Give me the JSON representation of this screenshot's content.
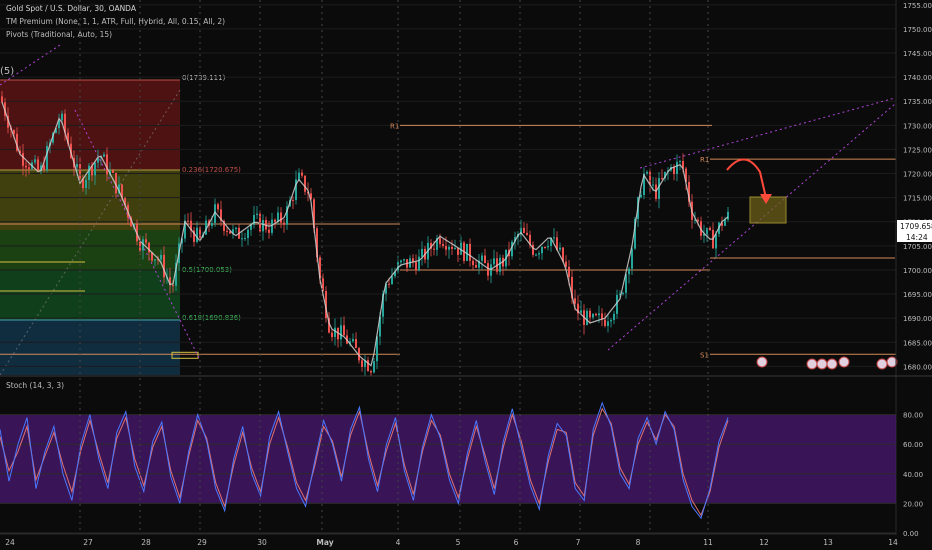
{
  "header": {
    "symbol_line": "Gold Spot / U.S. Dollar, 30, OANDA",
    "indicator_1": "TM Premium (None, 1, 1, ATR, Full, Hybrid, All, 0.15, All, 2)",
    "indicator_2": "Pivots (Traditional, Auto, 15)",
    "corner_label": "(5)"
  },
  "price_tag": {
    "value": "1709.658",
    "timer": "14:24"
  },
  "stoch_label": "Stoch (14, 3, 3)",
  "colors": {
    "background": "#0b0b0b",
    "candle_up": "#26a69a",
    "candle_down": "#ef5350",
    "pivot_line": "#d28a58",
    "trend_line": "#b044d8",
    "stoch_band": "#4a1a72",
    "stoch_k": "#4a78ff",
    "stoch_d": "#e07070",
    "target_box": "#d4c040"
  },
  "chart_data": [
    {
      "type": "candlestick",
      "title": "Gold Spot / U.S. Dollar, 30, OANDA",
      "ylim": [
        1678,
        1756
      ],
      "y_ticks": [
        "1680.00",
        "1685.00",
        "1690.00",
        "1695.00",
        "1700.00",
        "1705.00",
        "1710.00",
        "1715.00",
        "1720.00",
        "1725.00",
        "1730.00",
        "1735.00",
        "1740.00",
        "1745.00",
        "1750.00",
        "1755.00"
      ],
      "x_tick_labels": [
        "24",
        "27",
        "28",
        "29",
        "30",
        "May",
        "4",
        "5",
        "6",
        "7",
        "8",
        "11",
        "12",
        "13",
        "14"
      ],
      "close_path": [
        {
          "x": 0,
          "y": 1736
        },
        {
          "x": 20,
          "y": 1724
        },
        {
          "x": 40,
          "y": 1720
        },
        {
          "x": 60,
          "y": 1732
        },
        {
          "x": 80,
          "y": 1718
        },
        {
          "x": 100,
          "y": 1724
        },
        {
          "x": 120,
          "y": 1716
        },
        {
          "x": 140,
          "y": 1706
        },
        {
          "x": 160,
          "y": 1702
        },
        {
          "x": 172,
          "y": 1696
        },
        {
          "x": 185,
          "y": 1710
        },
        {
          "x": 200,
          "y": 1706
        },
        {
          "x": 215,
          "y": 1712
        },
        {
          "x": 235,
          "y": 1707
        },
        {
          "x": 255,
          "y": 1710
        },
        {
          "x": 270,
          "y": 1709
        },
        {
          "x": 285,
          "y": 1711
        },
        {
          "x": 298,
          "y": 1719
        },
        {
          "x": 310,
          "y": 1716
        },
        {
          "x": 320,
          "y": 1698
        },
        {
          "x": 330,
          "y": 1688
        },
        {
          "x": 345,
          "y": 1686
        },
        {
          "x": 360,
          "y": 1682
        },
        {
          "x": 372,
          "y": 1680
        },
        {
          "x": 385,
          "y": 1697
        },
        {
          "x": 400,
          "y": 1701
        },
        {
          "x": 420,
          "y": 1702
        },
        {
          "x": 440,
          "y": 1707
        },
        {
          "x": 455,
          "y": 1705
        },
        {
          "x": 470,
          "y": 1703
        },
        {
          "x": 490,
          "y": 1700
        },
        {
          "x": 505,
          "y": 1702
        },
        {
          "x": 520,
          "y": 1708
        },
        {
          "x": 535,
          "y": 1704
        },
        {
          "x": 550,
          "y": 1707
        },
        {
          "x": 565,
          "y": 1701
        },
        {
          "x": 575,
          "y": 1692
        },
        {
          "x": 590,
          "y": 1689
        },
        {
          "x": 605,
          "y": 1690
        },
        {
          "x": 620,
          "y": 1694
        },
        {
          "x": 632,
          "y": 1705
        },
        {
          "x": 643,
          "y": 1720
        },
        {
          "x": 655,
          "y": 1716
        },
        {
          "x": 670,
          "y": 1721
        },
        {
          "x": 682,
          "y": 1722
        },
        {
          "x": 692,
          "y": 1712
        },
        {
          "x": 702,
          "y": 1708
        },
        {
          "x": 712,
          "y": 1706
        },
        {
          "x": 722,
          "y": 1710
        },
        {
          "x": 728,
          "y": 1711
        }
      ],
      "pivot_levels": [
        {
          "label": "R1",
          "price": 1730.0
        },
        {
          "label": "R1",
          "price": 1723.0
        },
        {
          "label": "S1",
          "price": 1682.5
        }
      ],
      "fibonacci_levels": [
        {
          "label": "0(1739.111)",
          "price": 1739.111
        },
        {
          "label": "0.236(1720.675)",
          "price": 1720.675
        },
        {
          "label": "0.5(1700.053)",
          "price": 1700.053
        },
        {
          "label": "0.618(1690.836)",
          "price": 1690.836
        }
      ],
      "last_price": 1709.658
    },
    {
      "type": "line",
      "title": "Stoch (14, 3, 3)",
      "ylim": [
        0,
        100
      ],
      "y_ticks": [
        "0.00",
        "20.00",
        "40.00",
        "60.00",
        "80.00"
      ],
      "band": [
        20,
        80
      ],
      "series": [
        {
          "name": "%K",
          "values": [
            70,
            35,
            60,
            78,
            30,
            55,
            72,
            40,
            22,
            60,
            80,
            50,
            30,
            68,
            82,
            45,
            28,
            62,
            75,
            38,
            20,
            55,
            80,
            62,
            30,
            15,
            50,
            72,
            40,
            25,
            65,
            82,
            55,
            30,
            18,
            48,
            76,
            60,
            35,
            70,
            85,
            50,
            28,
            60,
            78,
            42,
            22,
            58,
            80,
            64,
            36,
            20,
            54,
            76,
            48,
            26,
            62,
            84,
            58,
            32,
            16,
            52,
            74,
            66,
            30,
            22,
            70,
            88,
            72,
            40,
            30,
            64,
            78,
            60,
            82,
            70,
            36,
            18,
            10,
            30,
            62,
            78
          ]
        },
        {
          "name": "%D",
          "values": [
            65,
            42,
            55,
            72,
            36,
            52,
            68,
            46,
            28,
            56,
            76,
            54,
            34,
            64,
            78,
            50,
            32,
            58,
            72,
            42,
            24,
            52,
            76,
            64,
            34,
            18,
            46,
            68,
            44,
            28,
            60,
            78,
            58,
            34,
            22,
            45,
            72,
            62,
            38,
            66,
            82,
            54,
            32,
            56,
            74,
            46,
            26,
            55,
            76,
            66,
            40,
            24,
            50,
            72,
            52,
            30,
            58,
            80,
            62,
            36,
            20,
            48,
            70,
            68,
            34,
            25,
            66,
            84,
            74,
            44,
            33,
            60,
            75,
            63,
            80,
            72,
            40,
            22,
            12,
            28,
            58,
            76
          ]
        }
      ]
    }
  ]
}
